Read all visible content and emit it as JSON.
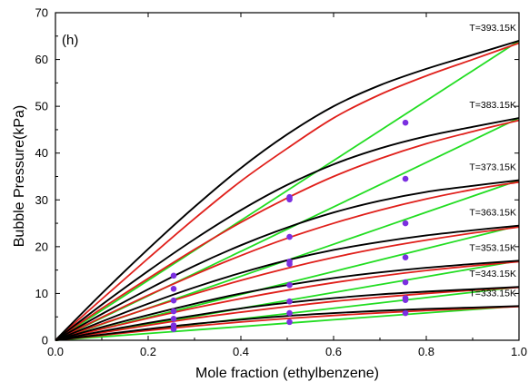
{
  "chart_data": {
    "type": "line",
    "panel_label": "(h)",
    "xlabel": "Mole fraction (ethylbenzene)",
    "ylabel": "Bubble Pressure(kPa)",
    "xlim": [
      0.0,
      1.0
    ],
    "ylim": [
      0,
      70
    ],
    "x_ticks": [
      0.0,
      0.2,
      0.4,
      0.6,
      0.8,
      1.0
    ],
    "x_tick_labels": [
      "0.0",
      "0.2",
      "0.4",
      "0.6",
      "0.8",
      "1.0"
    ],
    "y_ticks": [
      0,
      10,
      20,
      30,
      40,
      50,
      60,
      70
    ],
    "y_tick_labels": [
      "0",
      "10",
      "20",
      "30",
      "40",
      "50",
      "60",
      "70"
    ],
    "grid": false,
    "colors": {
      "black_model": "#000000",
      "red_model": "#e0201b",
      "green_model": "#22dd22",
      "experimental": "#7b2fe0"
    },
    "series": [
      {
        "name": "T=393.15K",
        "x": [
          0.0,
          0.1,
          0.2,
          0.3,
          0.4,
          0.5,
          0.6,
          0.7,
          0.8,
          0.9,
          1.0
        ],
        "black": [
          0,
          10.0,
          19.5,
          28.5,
          36.8,
          44.0,
          50.0,
          54.5,
          58.0,
          61.0,
          64.0
        ],
        "red": [
          0,
          8.8,
          17.5,
          26.0,
          34.0,
          41.0,
          47.5,
          52.5,
          56.5,
          60.0,
          63.5
        ],
        "green": [
          0,
          6.4,
          12.8,
          19.2,
          25.6,
          32.0,
          38.4,
          44.8,
          51.2,
          57.6,
          64.0
        ],
        "experimental": [
          {
            "x": 0.255,
            "y": 13.8
          },
          {
            "x": 0.505,
            "y": 30.6
          },
          {
            "x": 0.505,
            "y": 30.1
          },
          {
            "x": 0.755,
            "y": 46.5
          }
        ]
      },
      {
        "name": "T=383.15K",
        "x": [
          0.0,
          0.1,
          0.2,
          0.3,
          0.4,
          0.5,
          0.6,
          0.7,
          0.8,
          0.9,
          1.0
        ],
        "black": [
          0,
          7.6,
          14.8,
          21.6,
          27.8,
          33.2,
          37.6,
          41.0,
          43.6,
          45.6,
          47.5
        ],
        "red": [
          0,
          6.8,
          13.2,
          19.4,
          25.2,
          30.4,
          35.0,
          38.8,
          42.0,
          44.6,
          47.0
        ],
        "green": [
          0,
          4.75,
          9.5,
          14.25,
          19.0,
          23.75,
          28.5,
          33.25,
          38.0,
          42.75,
          47.5
        ],
        "experimental": [
          {
            "x": 0.255,
            "y": 11.0
          },
          {
            "x": 0.505,
            "y": 22.1
          },
          {
            "x": 0.755,
            "y": 34.5
          }
        ]
      },
      {
        "name": "T=373.15K",
        "x": [
          0.0,
          0.1,
          0.2,
          0.3,
          0.4,
          0.5,
          0.6,
          0.7,
          0.8,
          0.9,
          1.0
        ],
        "black": [
          0,
          5.6,
          10.9,
          15.9,
          20.3,
          24.1,
          27.3,
          29.8,
          31.7,
          33.0,
          34.2
        ],
        "red": [
          0,
          4.9,
          9.6,
          14.0,
          18.1,
          21.8,
          25.0,
          27.8,
          30.2,
          32.2,
          33.8
        ],
        "green": [
          0,
          3.42,
          6.84,
          10.26,
          13.68,
          17.1,
          20.52,
          23.94,
          27.36,
          30.78,
          34.2
        ],
        "experimental": [
          {
            "x": 0.255,
            "y": 8.5
          },
          {
            "x": 0.505,
            "y": 16.8
          },
          {
            "x": 0.505,
            "y": 16.3
          },
          {
            "x": 0.755,
            "y": 25.0
          }
        ]
      },
      {
        "name": "T=363.15K",
        "x": [
          0.0,
          0.1,
          0.2,
          0.3,
          0.4,
          0.5,
          0.6,
          0.7,
          0.8,
          0.9,
          1.0
        ],
        "black": [
          0,
          4.0,
          7.8,
          11.3,
          14.4,
          17.1,
          19.3,
          21.0,
          22.4,
          23.5,
          24.5
        ],
        "red": [
          0,
          3.5,
          6.8,
          9.9,
          12.8,
          15.4,
          17.7,
          19.7,
          21.4,
          22.9,
          24.2
        ],
        "green": [
          0,
          2.45,
          4.9,
          7.35,
          9.8,
          12.25,
          14.7,
          17.15,
          19.6,
          22.05,
          24.5
        ],
        "experimental": [
          {
            "x": 0.255,
            "y": 6.2
          },
          {
            "x": 0.505,
            "y": 11.8
          },
          {
            "x": 0.755,
            "y": 17.7
          }
        ]
      },
      {
        "name": "T=353.15K",
        "x": [
          0.0,
          0.1,
          0.2,
          0.3,
          0.4,
          0.5,
          0.6,
          0.7,
          0.8,
          0.9,
          1.0
        ],
        "black": [
          0,
          2.8,
          5.4,
          7.8,
          10.0,
          11.8,
          13.3,
          14.5,
          15.5,
          16.3,
          17.0
        ],
        "red": [
          0,
          2.4,
          4.7,
          6.9,
          8.9,
          10.7,
          12.3,
          13.7,
          14.9,
          15.9,
          16.8
        ],
        "green": [
          0,
          1.7,
          3.4,
          5.1,
          6.8,
          8.5,
          10.2,
          11.9,
          13.6,
          15.3,
          17.0
        ],
        "experimental": [
          {
            "x": 0.255,
            "y": 4.6
          },
          {
            "x": 0.505,
            "y": 8.3
          },
          {
            "x": 0.755,
            "y": 12.4
          }
        ]
      },
      {
        "name": "T=343.15K",
        "x": [
          0.0,
          0.1,
          0.2,
          0.3,
          0.4,
          0.5,
          0.6,
          0.7,
          0.8,
          0.9,
          1.0
        ],
        "black": [
          0,
          1.9,
          3.7,
          5.3,
          6.8,
          8.0,
          9.0,
          9.8,
          10.4,
          10.9,
          11.4
        ],
        "red": [
          0,
          1.6,
          3.2,
          4.7,
          6.0,
          7.2,
          8.3,
          9.2,
          10.0,
          10.7,
          11.3
        ],
        "green": [
          0,
          1.14,
          2.28,
          3.42,
          4.56,
          5.7,
          6.84,
          7.98,
          9.12,
          10.26,
          11.4
        ],
        "experimental": [
          {
            "x": 0.255,
            "y": 3.2
          },
          {
            "x": 0.505,
            "y": 5.8
          },
          {
            "x": 0.755,
            "y": 9.0
          },
          {
            "x": 0.755,
            "y": 8.6
          }
        ]
      },
      {
        "name": "T=333.15K",
        "x": [
          0.0,
          0.1,
          0.2,
          0.3,
          0.4,
          0.5,
          0.6,
          0.7,
          0.8,
          0.9,
          1.0
        ],
        "black": [
          0,
          1.2,
          2.4,
          3.5,
          4.4,
          5.2,
          5.8,
          6.3,
          6.7,
          7.0,
          7.3
        ],
        "red": [
          0,
          1.05,
          2.1,
          3.05,
          3.9,
          4.65,
          5.3,
          5.85,
          6.35,
          6.8,
          7.2
        ],
        "green": [
          0,
          0.73,
          1.46,
          2.19,
          2.92,
          3.65,
          4.38,
          5.11,
          5.84,
          6.57,
          7.3
        ],
        "experimental": [
          {
            "x": 0.255,
            "y": 2.4
          },
          {
            "x": 0.505,
            "y": 3.9
          },
          {
            "x": 0.755,
            "y": 5.8
          }
        ]
      }
    ]
  }
}
